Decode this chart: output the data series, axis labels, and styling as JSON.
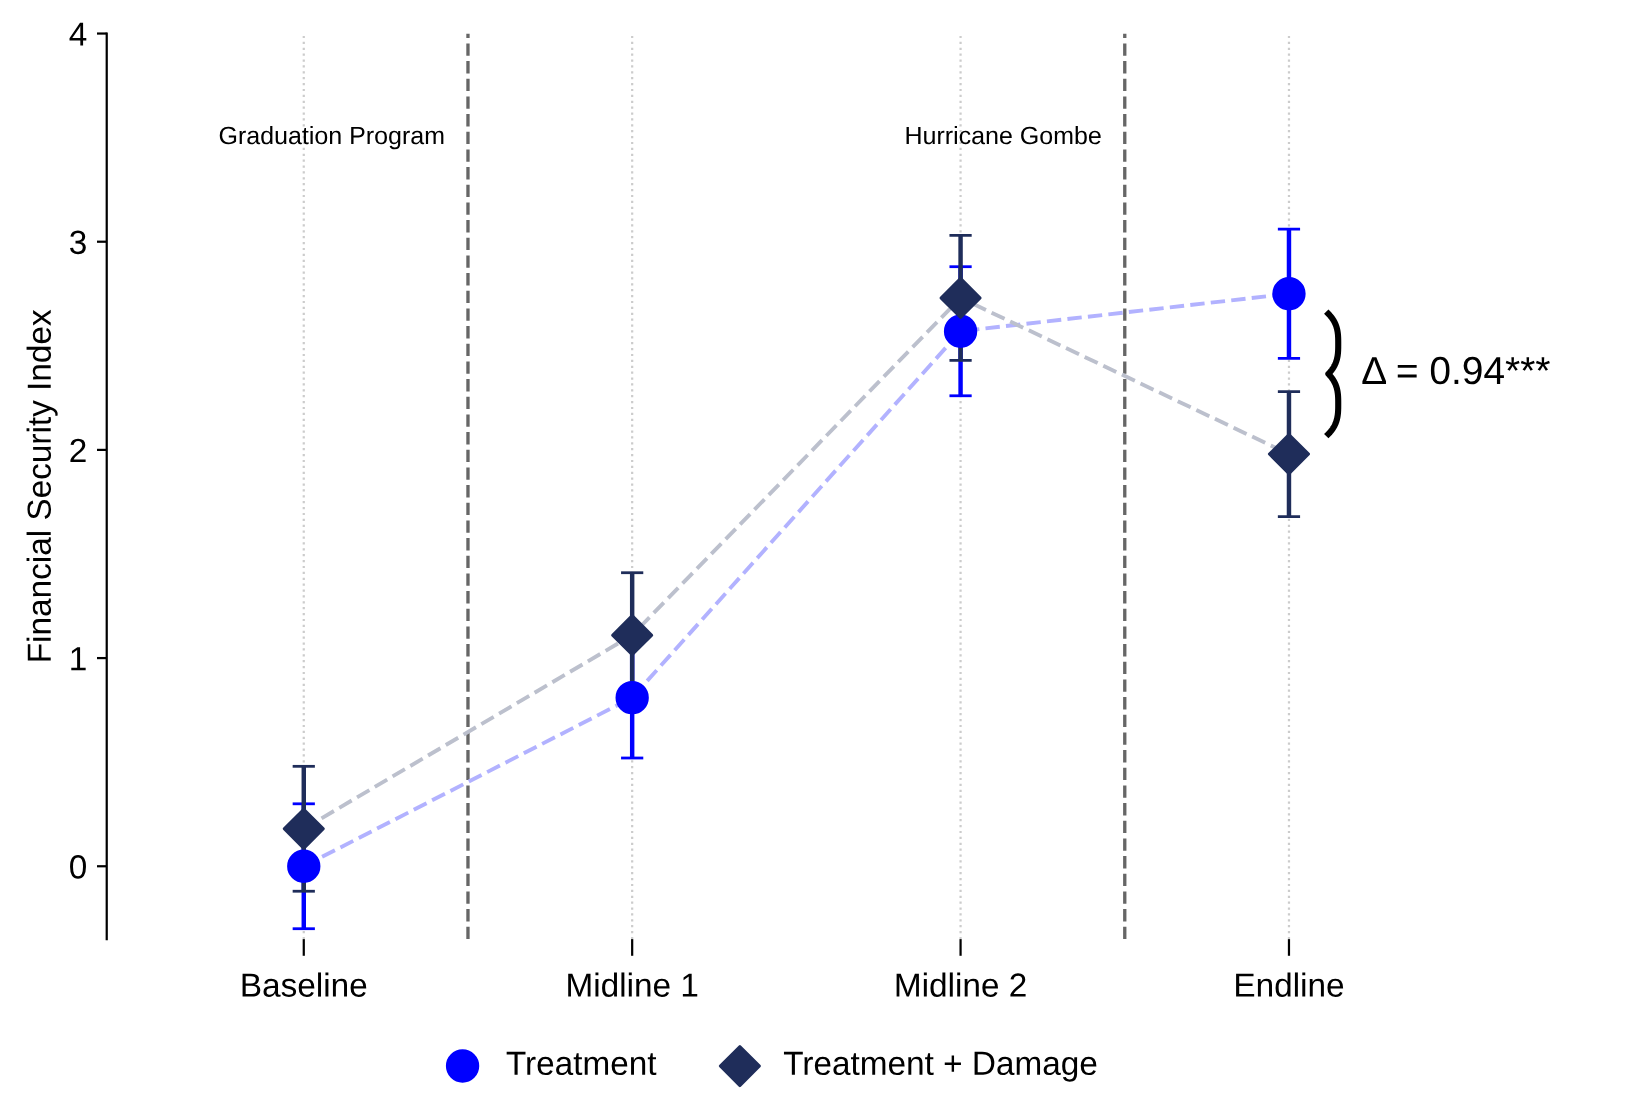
{
  "chart_data": {
    "type": "line",
    "ylabel": "Financial Security Index",
    "categories": [
      "Baseline",
      "Midline 1",
      "Midline 2",
      "Endline"
    ],
    "ylim": [
      -0.35,
      4
    ],
    "yticks": [
      0,
      1,
      2,
      3,
      4
    ],
    "grid": "x",
    "legend": "bottom",
    "line_style": "dashed",
    "series": [
      {
        "name": "Treatment",
        "color": "#0000ff",
        "marker": "circle",
        "values": [
          0.0,
          0.81,
          2.57,
          2.75
        ],
        "errors": [
          0.3,
          0.29,
          0.31,
          0.31
        ]
      },
      {
        "name": "Treatment + Damage",
        "color": "#1f2d5a",
        "marker": "diamond",
        "values": [
          0.18,
          1.11,
          2.73,
          1.98
        ],
        "errors": [
          0.3,
          0.3,
          0.3,
          0.3
        ]
      }
    ],
    "annotations": [
      "Graduation Program",
      "Hurricane Gombe",
      "Δ = 0.94***"
    ]
  }
}
